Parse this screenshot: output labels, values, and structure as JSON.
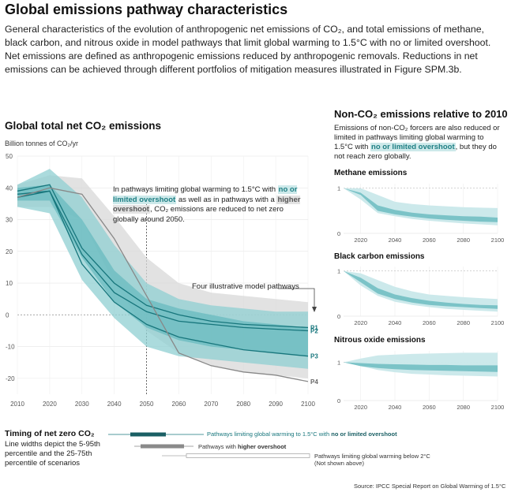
{
  "header": {
    "title": "Global emissions pathway characteristics",
    "intro": "General characteristics of the evolution of anthropogenic net emissions of CO₂, and total emissions of methane, black carbon, and nitrous oxide in model pathways that limit global warming to 1.5°C with no or limited overshoot. Net emissions are defined as anthropogenic emissions reduced by anthropogenic removals. Reductions in net emissions can be achieved through different portfolios of mitigation measures illustrated in Figure SPM.3b."
  },
  "main_chart": {
    "heading": "Global total net CO₂ emissions",
    "unit_label": "Billion tonnes of CO₂/yr",
    "callout_pre": "In pathways limiting global warming to 1.5°C with",
    "callout_hl1": "no or limited overshoot",
    "callout_mid": "as well as in pathways with a",
    "callout_hl2": "higher overshoot",
    "callout_post": ", CO₂ emissions are reduced to net zero globally around 2050.",
    "pathways_label": "Four illustrative model pathways"
  },
  "chart_data": [
    {
      "type": "area",
      "ylabel": "Billion tonnes of CO₂/yr",
      "x": [
        2010,
        2020,
        2030,
        2040,
        2050,
        2060,
        2070,
        2080,
        2090,
        2100
      ],
      "ylim": [
        -25,
        50
      ],
      "yticks": [
        50,
        40,
        30,
        20,
        10,
        0,
        -10,
        -20
      ],
      "xticks": [
        2010,
        2020,
        2030,
        2040,
        2050,
        2060,
        2070,
        2080,
        2090,
        2100
      ],
      "band_5_95": {
        "upper": [
          41,
          46,
          37,
          22,
          10,
          5,
          3,
          2,
          1,
          1
        ],
        "lower": [
          34,
          32,
          11,
          -1,
          -10,
          -13,
          -14,
          -15,
          -16,
          -17
        ]
      },
      "band_25_75": {
        "upper": [
          40,
          41,
          30,
          14,
          5,
          2,
          0,
          -2,
          -3,
          -4
        ],
        "lower": [
          36,
          36,
          18,
          4,
          -4,
          -8,
          -10,
          -11,
          -12,
          -13
        ]
      },
      "higher_overshoot_band": {
        "upper": [
          41,
          44,
          43,
          31,
          18,
          10,
          7,
          6,
          5,
          4
        ],
        "lower": [
          34,
          34,
          30,
          10,
          -5,
          -12,
          -16,
          -18,
          -19,
          -20
        ]
      },
      "series": [
        {
          "name": "P1",
          "values": [
            39,
            41,
            21,
            10,
            3,
            0,
            -2,
            -3,
            -3.5,
            -4
          ]
        },
        {
          "name": "P2",
          "values": [
            38,
            39,
            19,
            7,
            1,
            -2,
            -3,
            -4,
            -4.5,
            -5
          ]
        },
        {
          "name": "P3",
          "values": [
            37,
            39,
            16,
            4,
            -3,
            -7,
            -9,
            -11,
            -12,
            -13
          ]
        },
        {
          "name": "P4",
          "values": [
            37,
            40,
            38,
            24,
            6,
            -12,
            -16,
            -18,
            -19,
            -21
          ]
        }
      ]
    },
    {
      "type": "area",
      "title": "Methane emissions",
      "x": [
        2010,
        2020,
        2030,
        2040,
        2050,
        2060,
        2070,
        2080,
        2090,
        2100
      ],
      "yticks": [
        1,
        0
      ],
      "xticks": [
        2020,
        2040,
        2060,
        2080,
        2100
      ],
      "band_5_95": {
        "upper": [
          1.0,
          1.0,
          0.85,
          0.7,
          0.65,
          0.62,
          0.6,
          0.58,
          0.57,
          0.56
        ],
        "lower": [
          1.0,
          0.75,
          0.45,
          0.38,
          0.32,
          0.28,
          0.25,
          0.22,
          0.2,
          0.18
        ]
      },
      "band_25_75": {
        "upper": [
          1.0,
          0.9,
          0.62,
          0.52,
          0.46,
          0.42,
          0.4,
          0.38,
          0.37,
          0.35
        ],
        "lower": [
          1.0,
          0.85,
          0.5,
          0.42,
          0.37,
          0.33,
          0.3,
          0.28,
          0.26,
          0.25
        ]
      }
    },
    {
      "type": "area",
      "title": "Black carbon emissions",
      "x": [
        2010,
        2020,
        2030,
        2040,
        2050,
        2060,
        2070,
        2080,
        2090,
        2100
      ],
      "yticks": [
        1,
        0
      ],
      "xticks": [
        2020,
        2040,
        2060,
        2080,
        2100
      ],
      "band_5_95": {
        "upper": [
          1.0,
          0.95,
          0.8,
          0.65,
          0.55,
          0.48,
          0.45,
          0.42,
          0.4,
          0.38
        ],
        "lower": [
          1.0,
          0.68,
          0.45,
          0.32,
          0.25,
          0.2,
          0.16,
          0.14,
          0.12,
          0.1
        ]
      },
      "band_25_75": {
        "upper": [
          1.0,
          0.85,
          0.62,
          0.48,
          0.4,
          0.34,
          0.3,
          0.27,
          0.25,
          0.24
        ],
        "lower": [
          1.0,
          0.75,
          0.5,
          0.38,
          0.3,
          0.25,
          0.22,
          0.2,
          0.18,
          0.16
        ]
      }
    },
    {
      "type": "area",
      "title": "Nitrous oxide emissions",
      "x": [
        2010,
        2020,
        2030,
        2040,
        2050,
        2060,
        2070,
        2080,
        2090,
        2100
      ],
      "yticks": [
        1,
        0
      ],
      "xticks": [
        2020,
        2040,
        2060,
        2080,
        2100
      ],
      "band_5_95": {
        "upper": [
          1.0,
          1.1,
          1.18,
          1.2,
          1.22,
          1.23,
          1.24,
          1.25,
          1.25,
          1.25
        ],
        "lower": [
          1.0,
          0.9,
          0.8,
          0.74,
          0.7,
          0.68,
          0.66,
          0.65,
          0.64,
          0.63
        ]
      },
      "band_25_75": {
        "upper": [
          1.0,
          0.98,
          0.96,
          0.95,
          0.94,
          0.93,
          0.93,
          0.92,
          0.92,
          0.92
        ],
        "lower": [
          1.0,
          0.9,
          0.85,
          0.82,
          0.8,
          0.79,
          0.78,
          0.77,
          0.76,
          0.75
        ]
      }
    }
  ],
  "right_panel": {
    "heading": "Non-CO₂ emissions relative to 2010",
    "text_pre": "Emissions of non-CO₂ forcers are also reduced or limited in pathways limiting global warming to 1.5°C with",
    "text_hl": "no or limited overshoot",
    "text_post": ", but they do not reach zero globally."
  },
  "timing": {
    "heading": "Timing of net zero CO₂",
    "desc": "Line widths depict the 5-95th percentile and the 25-75th percentile of scenarios",
    "rows": [
      {
        "label_pre": "Pathways limiting global warming to 1.5°C with",
        "label_hl": "no or limited overshoot",
        "label_post": "overshoot"
      },
      {
        "label_pre": "Pathways with",
        "label_hl": "higher overshoot"
      },
      {
        "label_pre": "Pathways limiting global warming below 2°C",
        "label_sub": "(Not shown above)"
      }
    ]
  },
  "source": "Source: IPCC Special Report on Global Warming of 1.5°C",
  "colors": {
    "teal_dark": "#17767c",
    "teal_band": "#8fcfd2",
    "teal_light": "#c9e8ea",
    "gray_band": "#d8d8d8",
    "gray_line": "#888888"
  }
}
